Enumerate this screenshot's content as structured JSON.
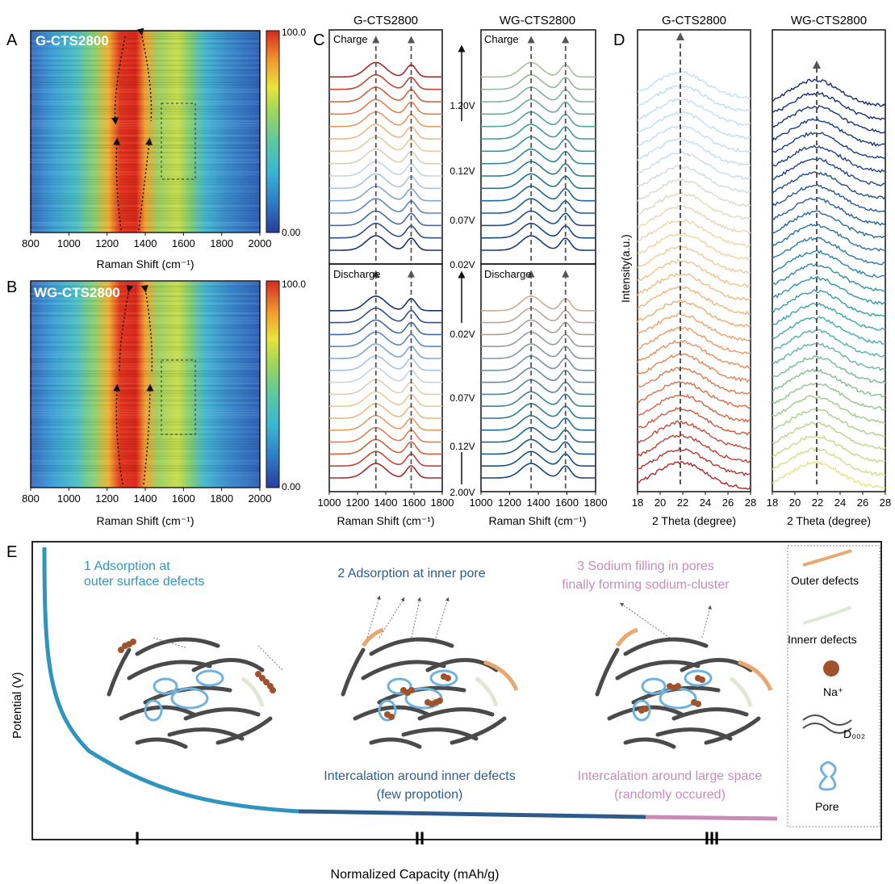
{
  "panel_letters": {
    "a": "A",
    "b": "B",
    "c": "C",
    "d": "D",
    "e": "E"
  },
  "heatmaps": [
    {
      "label": "G-CTS2800",
      "cmax": "100.0",
      "cmin": "0.00",
      "xlabel": "Raman Shift (cm⁻¹)",
      "xticks": [
        "800",
        "1000",
        "1200",
        "1400",
        "1600",
        "1800",
        "2000"
      ]
    },
    {
      "label": "WG-CTS2800",
      "cmax": "100.0",
      "cmin": "0.00",
      "xlabel": "Raman Shift (cm⁻¹)",
      "xticks": [
        "800",
        "1000",
        "1200",
        "1400",
        "1600",
        "1800",
        "2000"
      ]
    }
  ],
  "raman": {
    "titles": [
      "G-CTS2800",
      "WG-CTS2800"
    ],
    "charge": "Charge",
    "discharge": "Discharge",
    "xlabel": "Raman Shift (cm⁻¹)",
    "xticks": [
      "1000",
      "1200",
      "1400",
      "1600",
      "1800"
    ],
    "charge_voltages": [
      "1.20V",
      "0.12V",
      "0.07V",
      "0.02V"
    ],
    "discharge_voltages": [
      "0.02V",
      "0.07V",
      "0.12V",
      "2.00V"
    ]
  },
  "xrd": {
    "titles": [
      "G-CTS2800",
      "WG-CTS2800"
    ],
    "ylabel": "Intensity(a.u.)",
    "xlabel": "2 Theta (degree)",
    "xticks": [
      "18",
      "20",
      "22",
      "24",
      "26",
      "28"
    ]
  },
  "schematic": {
    "ylabel": "Potential (V)",
    "xlabel": "Normalized Capacity (mAh/g)",
    "stage1": [
      "1  Adsorption at",
      "outer surface defects"
    ],
    "stage2": "2 Adsorption at inner pore",
    "stage3": [
      "3 Sodium filling in pores",
      "finally forming sodium-cluster"
    ],
    "note2": [
      "Intercalation around inner defects",
      "(few propotion)"
    ],
    "note3": [
      "Intercalation around large space",
      "(randomly occured)"
    ],
    "regions": [
      "I",
      "II",
      "III"
    ],
    "legend": {
      "outer": "Outer defects",
      "inner": "Innerr defects",
      "na": "Na⁺",
      "d002": "D₀₀₂",
      "pore": "Pore"
    },
    "colors": {
      "stage1": "#2f95bf",
      "stage2": "#2d5b8c",
      "stage3": "#c98bb9",
      "outer": "#e8a870",
      "inner": "#dfe8d4",
      "na": "#a0522d",
      "pore": "#6fb2dd",
      "sheet": "#4a4a4a"
    }
  },
  "chart_data": [
    {
      "type": "heatmap",
      "title": "G-CTS2800",
      "x_range": [
        800,
        2000
      ],
      "xlabel": "Raman Shift (cm⁻¹)",
      "colorbar": [
        0,
        100
      ],
      "bands_cm1": [
        1350,
        1580
      ],
      "d_band_split": true
    },
    {
      "type": "heatmap",
      "title": "WG-CTS2800",
      "x_range": [
        800,
        2000
      ],
      "xlabel": "Raman Shift (cm⁻¹)",
      "colorbar": [
        0,
        100
      ],
      "bands_cm1": [
        1350,
        1580
      ],
      "d_band_split": true
    },
    {
      "type": "line",
      "title": "G-CTS2800",
      "x_range": [
        1000,
        1800
      ],
      "xlabel": "Raman Shift (cm⁻¹)",
      "peaks_cm1": [
        1330,
        1580
      ],
      "charge_curves": 15,
      "discharge_curves": 15
    },
    {
      "type": "line",
      "title": "WG-CTS2800",
      "x_range": [
        1000,
        1800
      ],
      "xlabel": "Raman Shift (cm⁻¹)",
      "peaks_cm1": [
        1350,
        1590
      ],
      "charge_curves": 15,
      "discharge_curves": 15
    },
    {
      "type": "line",
      "title": "G-CTS2800",
      "x_range": [
        18,
        28
      ],
      "xlabel": "2 Theta (degree)",
      "ylabel": "Intensity(a.u.)",
      "peak_2theta": 21.8,
      "curves": 30
    },
    {
      "type": "line",
      "title": "WG-CTS2800",
      "x_range": [
        18,
        28
      ],
      "xlabel": "2 Theta (degree)",
      "peak_2theta": 21.8,
      "curves": 30
    }
  ]
}
